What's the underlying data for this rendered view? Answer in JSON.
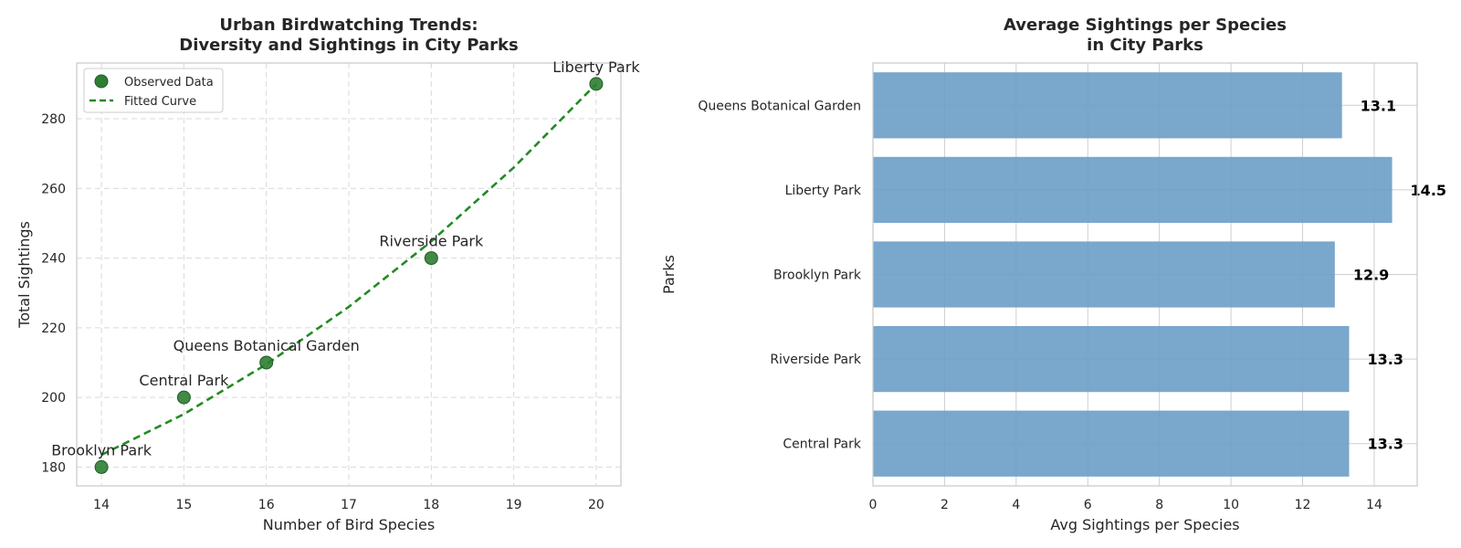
{
  "chart_data": [
    {
      "type": "scatter",
      "title": [
        "Urban Birdwatching Trends:",
        "Diversity and Sightings in City Parks"
      ],
      "xlabel": "Number of Bird Species",
      "ylabel": "Total Sightings",
      "xlim": [
        13.7,
        20.3
      ],
      "ylim": [
        174.6,
        296.0
      ],
      "xticks": [
        14,
        15,
        16,
        17,
        18,
        19,
        20
      ],
      "yticks": [
        180,
        200,
        220,
        240,
        260,
        280
      ],
      "grid": true,
      "legend_position": "top-left",
      "series": [
        {
          "name": "Observed Data",
          "kind": "scatter",
          "color": "#2e7d32",
          "points": [
            {
              "x": 14,
              "y": 180,
              "label": "Brooklyn Park"
            },
            {
              "x": 15,
              "y": 200,
              "label": "Central Park"
            },
            {
              "x": 16,
              "y": 210,
              "label": "Queens Botanical Garden"
            },
            {
              "x": 18,
              "y": 240,
              "label": "Riverside Park"
            },
            {
              "x": 20,
              "y": 290,
              "label": "Liberty Park"
            }
          ]
        },
        {
          "name": "Fitted Curve",
          "kind": "line",
          "style": "dashed",
          "color": "#228b22",
          "x": [
            14,
            15,
            16,
            17,
            18,
            19,
            20
          ],
          "y": [
            183.5,
            195.2,
            209.5,
            226.0,
            244.8,
            266.0,
            290.0
          ]
        }
      ]
    },
    {
      "type": "bar",
      "orientation": "horizontal",
      "title": [
        "Average Sightings per Species",
        "in City Parks"
      ],
      "xlabel": "Avg Sightings per Species",
      "ylabel": "Parks",
      "xlim": [
        0,
        15.2
      ],
      "xticks": [
        0,
        2,
        4,
        6,
        8,
        10,
        12,
        14
      ],
      "grid": true,
      "color": "#6f9fc8",
      "categories": [
        "Queens Botanical Garden",
        "Liberty Park",
        "Brooklyn Park",
        "Riverside Park",
        "Central Park"
      ],
      "values": [
        13.1,
        14.5,
        12.9,
        13.3,
        13.3
      ],
      "value_labels": [
        "13.1",
        "14.5",
        "12.9",
        "13.3",
        "13.3"
      ]
    }
  ]
}
